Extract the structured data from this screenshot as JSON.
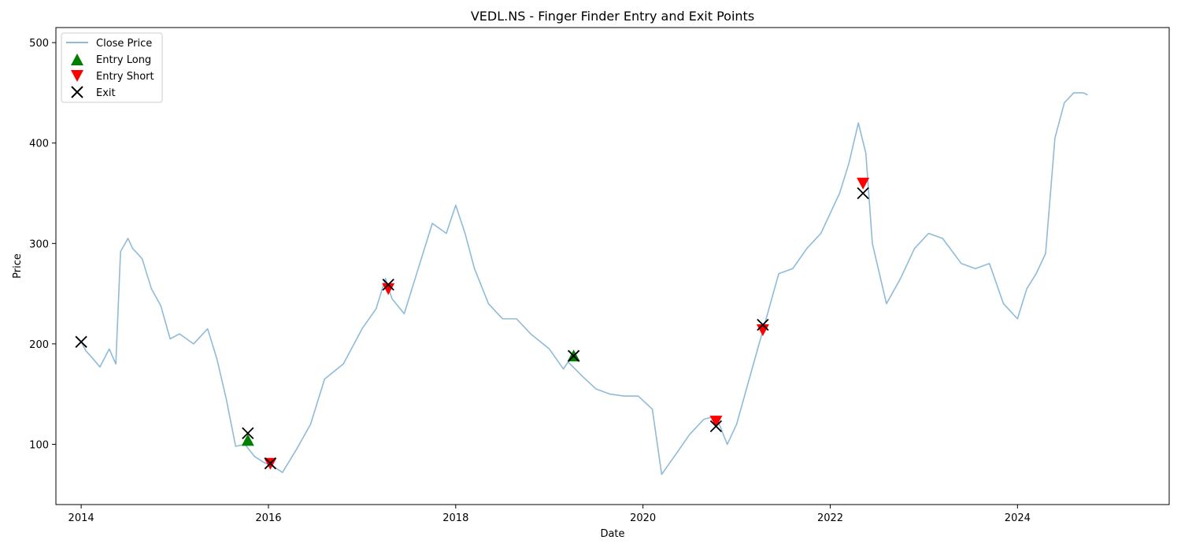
{
  "chart_data": {
    "type": "line",
    "title": "VEDL.NS - Finger Finder Entry and Exit Points",
    "xlabel": "Date",
    "ylabel": "Price",
    "xlim": [
      2013.73,
      2025.62
    ],
    "ylim": [
      40,
      515
    ],
    "xticks": [
      2014,
      2016,
      2018,
      2020,
      2022,
      2024
    ],
    "xtick_labels": [
      "2014",
      "2016",
      "2018",
      "2020",
      "2022",
      "2024"
    ],
    "yticks": [
      100,
      200,
      300,
      400,
      500
    ],
    "ytick_labels": [
      "100",
      "200",
      "300",
      "400",
      "500"
    ],
    "grid": false,
    "legend_position": "upper-left",
    "legend": [
      {
        "label": "Close Price",
        "marker": "line"
      },
      {
        "label": "Entry Long",
        "marker": "triangle-up"
      },
      {
        "label": "Entry Short",
        "marker": "triangle-down"
      },
      {
        "label": "Exit",
        "marker": "x"
      }
    ],
    "colors": {
      "close": "#1f77b4",
      "long": "#008000",
      "short": "#ff0000",
      "exit": "#000000"
    },
    "close_price": {
      "x": [
        2014.0,
        2014.05,
        2014.1,
        2014.2,
        2014.3,
        2014.37,
        2014.42,
        2014.5,
        2014.55,
        2014.65,
        2014.75,
        2014.85,
        2014.95,
        2015.05,
        2015.2,
        2015.35,
        2015.45,
        2015.55,
        2015.65,
        2015.75,
        2015.85,
        2015.95,
        2016.05,
        2016.15,
        2016.3,
        2016.45,
        2016.6,
        2016.8,
        2017.0,
        2017.15,
        2017.25,
        2017.32,
        2017.45,
        2017.6,
        2017.75,
        2017.9,
        2018.0,
        2018.1,
        2018.2,
        2018.35,
        2018.5,
        2018.65,
        2018.8,
        2019.0,
        2019.15,
        2019.2,
        2019.35,
        2019.5,
        2019.65,
        2019.8,
        2019.95,
        2020.1,
        2020.2,
        2020.35,
        2020.5,
        2020.65,
        2020.78,
        2020.9,
        2021.0,
        2021.15,
        2021.3,
        2021.45,
        2021.6,
        2021.75,
        2021.9,
        2022.0,
        2022.1,
        2022.2,
        2022.3,
        2022.38,
        2022.45,
        2022.6,
        2022.75,
        2022.9,
        2023.05,
        2023.2,
        2023.4,
        2023.55,
        2023.7,
        2023.85,
        2024.0,
        2024.1,
        2024.2,
        2024.3,
        2024.4,
        2024.5,
        2024.6,
        2024.7,
        2024.75
      ],
      "y": [
        202,
        193,
        188,
        177,
        195,
        180,
        292,
        305,
        295,
        285,
        255,
        238,
        205,
        210,
        200,
        215,
        185,
        145,
        98,
        100,
        88,
        82,
        78,
        72,
        95,
        120,
        165,
        180,
        215,
        235,
        265,
        245,
        230,
        275,
        320,
        310,
        338,
        310,
        275,
        240,
        225,
        225,
        210,
        195,
        175,
        182,
        168,
        155,
        150,
        148,
        148,
        135,
        70,
        90,
        110,
        125,
        128,
        100,
        120,
        170,
        220,
        270,
        275,
        295,
        310,
        330,
        350,
        380,
        420,
        390,
        300,
        240,
        265,
        295,
        310,
        305,
        280,
        275,
        280,
        240,
        225,
        255,
        270,
        290,
        405,
        440,
        450,
        450,
        448
      ]
    },
    "entry_long": [
      {
        "x": 2015.78,
        "y": 104
      },
      {
        "x": 2019.26,
        "y": 188
      }
    ],
    "entry_short": [
      {
        "x": 2016.02,
        "y": 81
      },
      {
        "x": 2017.28,
        "y": 255
      },
      {
        "x": 2020.78,
        "y": 123
      },
      {
        "x": 2021.28,
        "y": 214
      },
      {
        "x": 2022.35,
        "y": 360
      }
    ],
    "exits": [
      {
        "x": 2014.0,
        "y": 202
      },
      {
        "x": 2015.78,
        "y": 111
      },
      {
        "x": 2016.02,
        "y": 81
      },
      {
        "x": 2017.28,
        "y": 259
      },
      {
        "x": 2019.26,
        "y": 188
      },
      {
        "x": 2020.78,
        "y": 118
      },
      {
        "x": 2021.28,
        "y": 219
      },
      {
        "x": 2022.35,
        "y": 350
      }
    ]
  }
}
